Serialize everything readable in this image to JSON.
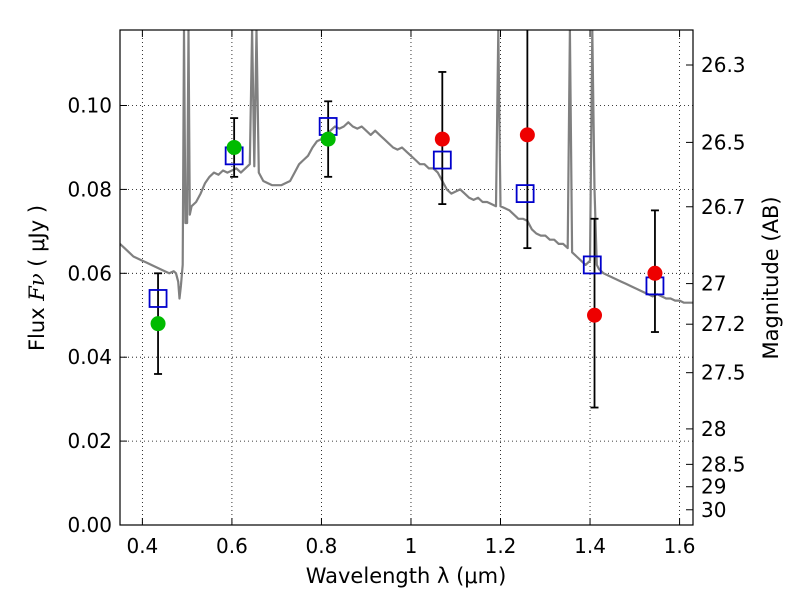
{
  "chart_data": {
    "type": "scatter",
    "xlabel": "Wavelength  λ (μm)",
    "ylabel": "Flux  Fν  ( μJy )",
    "ylabel_parts": {
      "prefix": "Flux  ",
      "symbol": "Fν",
      "suffix": "  ( μJy )"
    },
    "y2label": "Magnitude (AB)",
    "xlim": [
      0.35,
      1.63
    ],
    "ylim": [
      0.0,
      0.118
    ],
    "grid": true,
    "x_ticks": [
      {
        "value": 0.4,
        "label": "0.4"
      },
      {
        "value": 0.6,
        "label": "0.6"
      },
      {
        "value": 0.8,
        "label": "0.8"
      },
      {
        "value": 1.0,
        "label": "1"
      },
      {
        "value": 1.2,
        "label": "1.2"
      },
      {
        "value": 1.4,
        "label": "1.4"
      },
      {
        "value": 1.6,
        "label": "1.6"
      }
    ],
    "y_ticks": [
      {
        "value": 0.0,
        "label": "0.00"
      },
      {
        "value": 0.02,
        "label": "0.02"
      },
      {
        "value": 0.04,
        "label": "0.04"
      },
      {
        "value": 0.06,
        "label": "0.06"
      },
      {
        "value": 0.08,
        "label": "0.08"
      },
      {
        "value": 0.1,
        "label": "0.10"
      }
    ],
    "y2_ticks": [
      {
        "mag": 26.3,
        "label": "26.3"
      },
      {
        "mag": 26.5,
        "label": "26.5"
      },
      {
        "mag": 26.7,
        "label": "26.7"
      },
      {
        "mag": 27.0,
        "label": "27"
      },
      {
        "mag": 27.2,
        "label": "27.2"
      },
      {
        "mag": 27.5,
        "label": "27.5"
      },
      {
        "mag": 28.0,
        "label": "28"
      },
      {
        "mag": 28.5,
        "label": "28.5"
      },
      {
        "mag": 29.0,
        "label": "29"
      },
      {
        "mag": 30.0,
        "label": "30"
      }
    ],
    "series": [
      {
        "name": "model-spectrum",
        "kind": "line",
        "color": "#808080",
        "points": [
          [
            0.35,
            0.067
          ],
          [
            0.36,
            0.066
          ],
          [
            0.37,
            0.065
          ],
          [
            0.38,
            0.064
          ],
          [
            0.39,
            0.0635
          ],
          [
            0.4,
            0.063
          ],
          [
            0.41,
            0.0625
          ],
          [
            0.42,
            0.062
          ],
          [
            0.43,
            0.0615
          ],
          [
            0.44,
            0.061
          ],
          [
            0.45,
            0.0605
          ],
          [
            0.46,
            0.06
          ],
          [
            0.47,
            0.0605
          ],
          [
            0.475,
            0.06
          ],
          [
            0.48,
            0.058
          ],
          [
            0.483,
            0.054
          ],
          [
            0.486,
            0.057
          ],
          [
            0.49,
            0.062
          ],
          [
            0.493,
            0.118
          ],
          [
            0.496,
            0.072
          ],
          [
            0.5,
            0.072
          ],
          [
            0.503,
            0.118
          ],
          [
            0.506,
            0.074
          ],
          [
            0.51,
            0.076
          ],
          [
            0.52,
            0.077
          ],
          [
            0.53,
            0.079
          ],
          [
            0.54,
            0.0815
          ],
          [
            0.55,
            0.083
          ],
          [
            0.56,
            0.084
          ],
          [
            0.57,
            0.0835
          ],
          [
            0.58,
            0.0845
          ],
          [
            0.59,
            0.084
          ],
          [
            0.6,
            0.0845
          ],
          [
            0.61,
            0.085
          ],
          [
            0.62,
            0.084
          ],
          [
            0.63,
            0.085
          ],
          [
            0.64,
            0.086
          ],
          [
            0.645,
            0.118
          ],
          [
            0.65,
            0.0855
          ],
          [
            0.655,
            0.118
          ],
          [
            0.66,
            0.084
          ],
          [
            0.67,
            0.082
          ],
          [
            0.68,
            0.0815
          ],
          [
            0.69,
            0.081
          ],
          [
            0.7,
            0.081
          ],
          [
            0.71,
            0.081
          ],
          [
            0.72,
            0.0815
          ],
          [
            0.73,
            0.082
          ],
          [
            0.74,
            0.084
          ],
          [
            0.75,
            0.086
          ],
          [
            0.76,
            0.087
          ],
          [
            0.77,
            0.088
          ],
          [
            0.78,
            0.09
          ],
          [
            0.79,
            0.0915
          ],
          [
            0.8,
            0.092
          ],
          [
            0.81,
            0.093
          ],
          [
            0.82,
            0.094
          ],
          [
            0.83,
            0.095
          ],
          [
            0.84,
            0.0945
          ],
          [
            0.85,
            0.095
          ],
          [
            0.86,
            0.096
          ],
          [
            0.87,
            0.095
          ],
          [
            0.88,
            0.0945
          ],
          [
            0.89,
            0.095
          ],
          [
            0.9,
            0.094
          ],
          [
            0.91,
            0.093
          ],
          [
            0.92,
            0.094
          ],
          [
            0.93,
            0.093
          ],
          [
            0.94,
            0.092
          ],
          [
            0.95,
            0.091
          ],
          [
            0.96,
            0.09
          ],
          [
            0.97,
            0.0895
          ],
          [
            0.98,
            0.09
          ],
          [
            0.99,
            0.089
          ],
          [
            1.0,
            0.088
          ],
          [
            1.01,
            0.087
          ],
          [
            1.02,
            0.086
          ],
          [
            1.03,
            0.086
          ],
          [
            1.04,
            0.085
          ],
          [
            1.05,
            0.085
          ],
          [
            1.06,
            0.084
          ],
          [
            1.07,
            0.082
          ],
          [
            1.08,
            0.08
          ],
          [
            1.09,
            0.079
          ],
          [
            1.1,
            0.0795
          ],
          [
            1.11,
            0.08
          ],
          [
            1.12,
            0.079
          ],
          [
            1.13,
            0.078
          ],
          [
            1.14,
            0.0775
          ],
          [
            1.15,
            0.078
          ],
          [
            1.16,
            0.077
          ],
          [
            1.17,
            0.077
          ],
          [
            1.18,
            0.0765
          ],
          [
            1.19,
            0.076
          ],
          [
            1.195,
            0.118
          ],
          [
            1.2,
            0.076
          ],
          [
            1.21,
            0.0755
          ],
          [
            1.22,
            0.075
          ],
          [
            1.23,
            0.074
          ],
          [
            1.24,
            0.073
          ],
          [
            1.25,
            0.073
          ],
          [
            1.26,
            0.0725
          ],
          [
            1.27,
            0.0705
          ],
          [
            1.28,
            0.0695
          ],
          [
            1.29,
            0.069
          ],
          [
            1.3,
            0.069
          ],
          [
            1.31,
            0.068
          ],
          [
            1.32,
            0.068
          ],
          [
            1.33,
            0.067
          ],
          [
            1.34,
            0.067
          ],
          [
            1.35,
            0.066
          ],
          [
            1.355,
            0.118
          ],
          [
            1.36,
            0.065
          ],
          [
            1.37,
            0.064
          ],
          [
            1.38,
            0.063
          ],
          [
            1.39,
            0.062
          ],
          [
            1.4,
            0.063
          ],
          [
            1.405,
            0.118
          ],
          [
            1.41,
            0.08
          ],
          [
            1.415,
            0.062
          ],
          [
            1.42,
            0.061
          ],
          [
            1.43,
            0.06
          ],
          [
            1.44,
            0.0595
          ],
          [
            1.45,
            0.059
          ],
          [
            1.46,
            0.0585
          ],
          [
            1.47,
            0.058
          ],
          [
            1.48,
            0.0575
          ],
          [
            1.49,
            0.057
          ],
          [
            1.5,
            0.0565
          ],
          [
            1.51,
            0.056
          ],
          [
            1.52,
            0.0555
          ],
          [
            1.53,
            0.055
          ],
          [
            1.54,
            0.0545
          ],
          [
            1.55,
            0.055
          ],
          [
            1.56,
            0.0545
          ],
          [
            1.57,
            0.054
          ],
          [
            1.58,
            0.054
          ],
          [
            1.59,
            0.0535
          ],
          [
            1.6,
            0.0535
          ],
          [
            1.61,
            0.053
          ],
          [
            1.62,
            0.053
          ],
          [
            1.63,
            0.053
          ]
        ]
      },
      {
        "name": "model-photometry",
        "kind": "open-square",
        "color": "#0000cc",
        "points": [
          [
            0.435,
            0.054
          ],
          [
            0.605,
            0.088
          ],
          [
            0.815,
            0.095
          ],
          [
            1.07,
            0.087
          ],
          [
            1.255,
            0.079
          ],
          [
            1.405,
            0.062
          ],
          [
            1.545,
            0.057
          ]
        ]
      },
      {
        "name": "detections",
        "kind": "filled-circle",
        "color": "#00bb00",
        "points": [
          [
            0.435,
            0.048
          ],
          [
            0.605,
            0.09
          ],
          [
            0.815,
            0.092
          ]
        ]
      },
      {
        "name": "upper-band-measurements",
        "kind": "filled-circle",
        "color": "#ee0000",
        "points": [
          [
            1.07,
            0.092
          ],
          [
            1.26,
            0.093
          ],
          [
            1.41,
            0.05
          ],
          [
            1.545,
            0.06
          ]
        ]
      },
      {
        "name": "error-bars",
        "kind": "errorbar",
        "color": "#000000",
        "bars": [
          {
            "x": 0.435,
            "low": 0.036,
            "high": 0.06
          },
          {
            "x": 0.605,
            "low": 0.083,
            "high": 0.097
          },
          {
            "x": 0.815,
            "low": 0.083,
            "high": 0.101
          },
          {
            "x": 1.07,
            "low": 0.0765,
            "high": 0.108
          },
          {
            "x": 1.26,
            "low": 0.066,
            "high": 0.12
          },
          {
            "x": 1.41,
            "low": 0.028,
            "high": 0.073
          },
          {
            "x": 1.545,
            "low": 0.046,
            "high": 0.075
          }
        ]
      }
    ]
  }
}
